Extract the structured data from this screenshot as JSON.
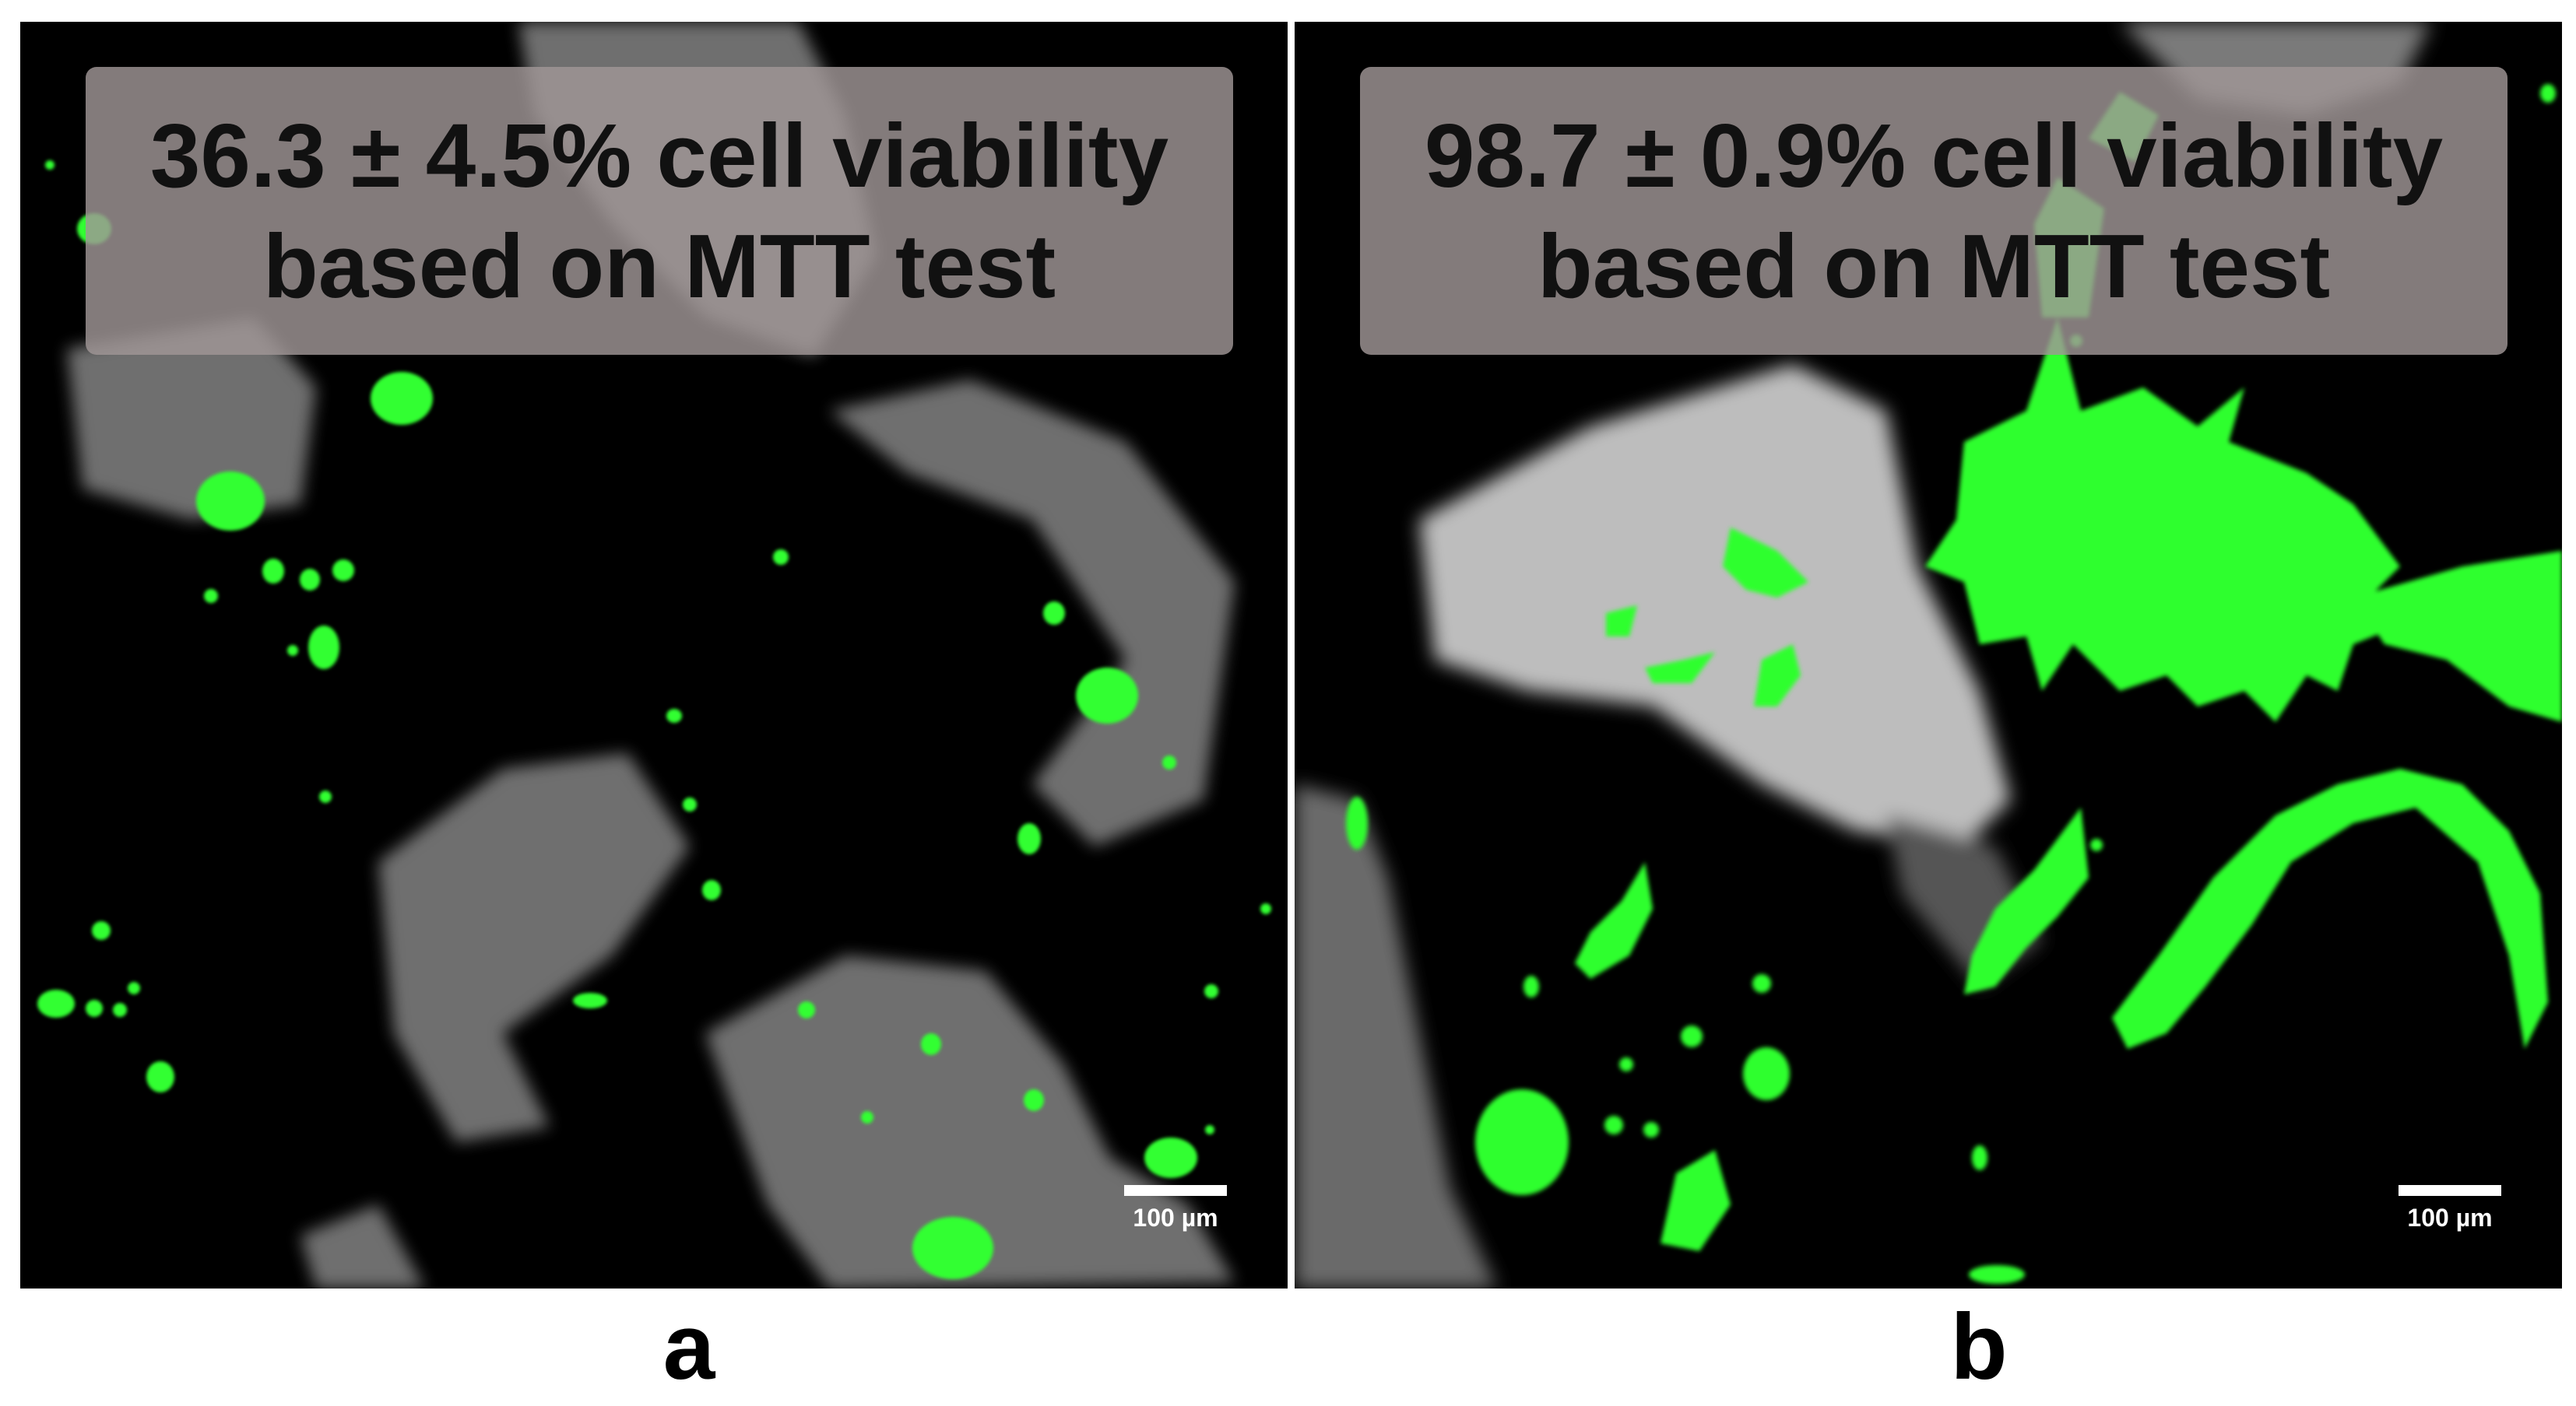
{
  "panels": [
    {
      "letter": "a",
      "viability_line1": "36.3 ± 4.5% cell viability",
      "viability_line2": "based on MTT test",
      "scale_label": "100 µm"
    },
    {
      "letter": "b",
      "viability_line1": "98.7 ± 0.9% cell viability",
      "viability_line2": "based on MTT test",
      "scale_label": "100 µm"
    }
  ],
  "colors": {
    "background": "#000000",
    "cells": "#33ff33",
    "scaffold": "#8a8a8a",
    "overlay": "#a09696"
  }
}
